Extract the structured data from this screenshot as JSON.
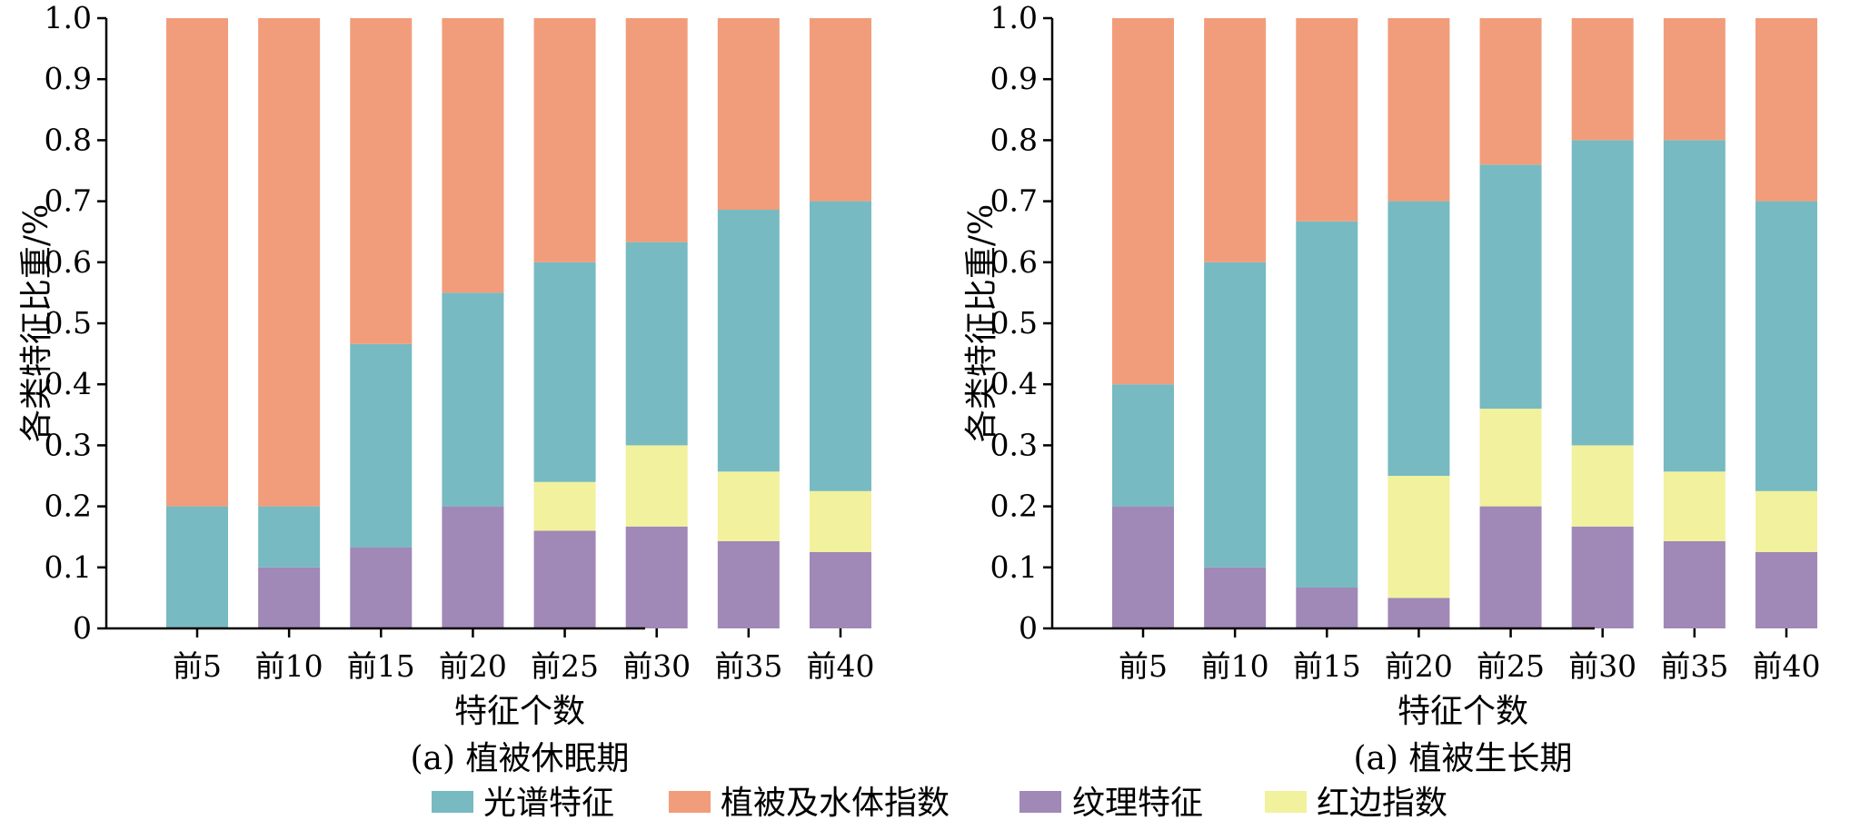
{
  "colors": {
    "光谱特征": "#77BAC1",
    "植被及水体指数": "#F19D7B",
    "纹理特征": "#A088B7",
    "红边指数": "#F2F19D"
  },
  "legend": [
    "光谱特征",
    "植被及水体指数",
    "纹理特征",
    "红边指数"
  ],
  "chart_data": [
    {
      "type": "bar",
      "stacked": true,
      "title": "(a) 植被休眠期",
      "xlabel": "特征个数",
      "ylabel": "各类特征比重/%",
      "ylim": [
        0,
        1.0
      ],
      "yticks": [
        "0",
        "0.1",
        "0.2",
        "0.3",
        "0.4",
        "0.5",
        "0.6",
        "0.7",
        "0.8",
        "0.9",
        "1.0"
      ],
      "categories": [
        "前5",
        "前10",
        "前15",
        "前20",
        "前25",
        "前30",
        "前35",
        "前40"
      ],
      "series": [
        {
          "name": "纹理特征",
          "values": [
            0,
            0.1,
            0.133,
            0.2,
            0.16,
            0.167,
            0.143,
            0.125
          ]
        },
        {
          "name": "红边指数",
          "values": [
            0,
            0,
            0,
            0,
            0.08,
            0.133,
            0.114,
            0.1
          ]
        },
        {
          "name": "光谱特征",
          "values": [
            0.2,
            0.1,
            0.333,
            0.35,
            0.36,
            0.333,
            0.429,
            0.475
          ]
        },
        {
          "name": "植被及水体指数",
          "values": [
            0.8,
            0.8,
            0.534,
            0.45,
            0.4,
            0.367,
            0.314,
            0.3
          ]
        }
      ]
    },
    {
      "type": "bar",
      "stacked": true,
      "title": "(a) 植被生长期",
      "xlabel": "特征个数",
      "ylabel": "各类特征比重/%",
      "ylim": [
        0,
        1.0
      ],
      "yticks": [
        "0",
        "0.1",
        "0.2",
        "0.3",
        "0.4",
        "0.5",
        "0.6",
        "0.7",
        "0.8",
        "0.9",
        "1.0"
      ],
      "categories": [
        "前5",
        "前10",
        "前15",
        "前20",
        "前25",
        "前30",
        "前35",
        "前40"
      ],
      "series": [
        {
          "name": "纹理特征",
          "values": [
            0.2,
            0.1,
            0.067,
            0.05,
            0.2,
            0.167,
            0.143,
            0.125
          ]
        },
        {
          "name": "红边指数",
          "values": [
            0,
            0,
            0,
            0.2,
            0.16,
            0.133,
            0.114,
            0.1
          ]
        },
        {
          "name": "光谱特征",
          "values": [
            0.2,
            0.5,
            0.6,
            0.45,
            0.4,
            0.5,
            0.543,
            0.475
          ]
        },
        {
          "name": "植被及水体指数",
          "values": [
            0.6,
            0.4,
            0.333,
            0.3,
            0.24,
            0.2,
            0.2,
            0.3
          ]
        }
      ]
    }
  ]
}
